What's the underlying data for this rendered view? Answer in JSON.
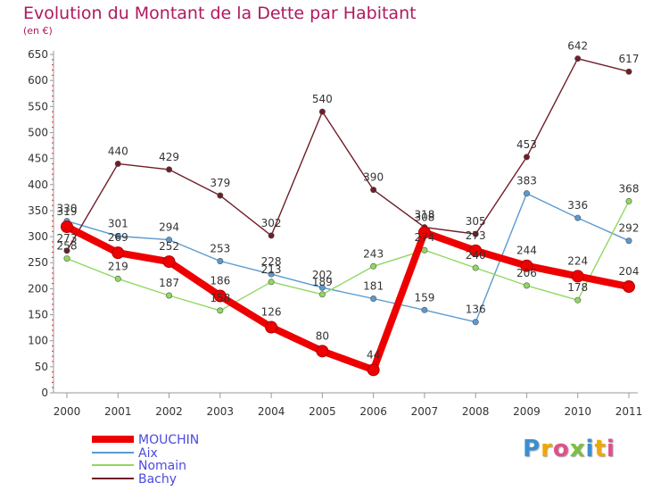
{
  "title": "Evolution du Montant de la Dette par Habitant",
  "unit_label": "(en €)",
  "brand": {
    "letters": [
      "P",
      "r",
      "o",
      "x",
      "i",
      "t",
      "i"
    ],
    "colors": [
      "#3a8fd1",
      "#f0a800",
      "#e0508a",
      "#7cc040",
      "#3a8fd1",
      "#f0a800",
      "#e0508a"
    ]
  },
  "chart_data": {
    "type": "line",
    "x": [
      "2000",
      "2001",
      "2002",
      "2003",
      "2004",
      "2005",
      "2006",
      "2007",
      "2008",
      "2009",
      "2010",
      "2011"
    ],
    "ylim": [
      0,
      650
    ],
    "yticks": [
      0,
      50,
      100,
      150,
      200,
      250,
      300,
      350,
      400,
      450,
      500,
      550,
      600,
      650
    ],
    "grid": false,
    "legend_placement": "bottom-left",
    "series": [
      {
        "name": "MOUCHIN",
        "color": "#ee0000",
        "emphasis": true,
        "values": [
          319,
          269,
          252,
          186,
          126,
          80,
          44,
          308,
          273,
          244,
          224,
          204
        ]
      },
      {
        "name": "Aix",
        "color": "#5a9ad0",
        "values": [
          330,
          301,
          294,
          253,
          228,
          202,
          181,
          159,
          136,
          383,
          336,
          292
        ]
      },
      {
        "name": "Nomain",
        "color": "#90d860",
        "values": [
          258,
          219,
          187,
          158,
          213,
          189,
          243,
          274,
          240,
          206,
          178,
          368
        ]
      },
      {
        "name": "Bachy",
        "color": "#6e1e28",
        "values": [
          273,
          440,
          429,
          379,
          302,
          540,
          390,
          318,
          305,
          453,
          642,
          617
        ]
      }
    ]
  }
}
